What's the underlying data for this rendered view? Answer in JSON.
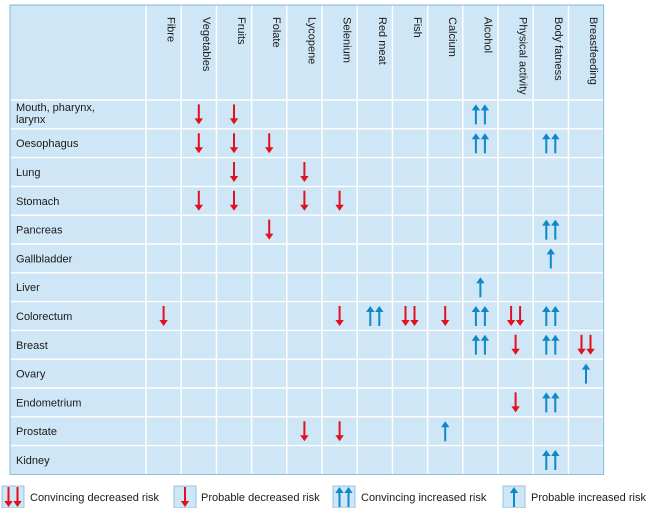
{
  "chart_data": {
    "type": "table",
    "title": "",
    "columns": [
      "Fibre",
      "Vegetables",
      "Fruits",
      "Folate",
      "Lycopene",
      "Selenium",
      "Red meat",
      "Fish",
      "Calcium",
      "Alcohol",
      "Physical activity",
      "Body fatness",
      "Breastfeeding"
    ],
    "rows": [
      {
        "label": [
          "Mouth, pharynx,",
          "larynx"
        ],
        "cells": {
          "Vegetables": "PD",
          "Fruits": "PD",
          "Alcohol": "CI"
        }
      },
      {
        "label": [
          "Oesophagus"
        ],
        "cells": {
          "Vegetables": "PD",
          "Fruits": "PD",
          "Folate": "PD",
          "Alcohol": "CI",
          "Body fatness": "CI"
        }
      },
      {
        "label": [
          "Lung"
        ],
        "cells": {
          "Fruits": "PD",
          "Lycopene": "PD"
        }
      },
      {
        "label": [
          "Stomach"
        ],
        "cells": {
          "Vegetables": "PD",
          "Fruits": "PD",
          "Lycopene": "PD",
          "Selenium": "PD"
        }
      },
      {
        "label": [
          "Pancreas"
        ],
        "cells": {
          "Folate": "PD",
          "Body fatness": "CI"
        }
      },
      {
        "label": [
          "Gallbladder"
        ],
        "cells": {
          "Body fatness": "PI"
        }
      },
      {
        "label": [
          "Liver"
        ],
        "cells": {
          "Alcohol": "PI"
        }
      },
      {
        "label": [
          "Colorectum"
        ],
        "cells": {
          "Fibre": "PD",
          "Selenium": "PD",
          "Red meat": "CI",
          "Fish": "CD",
          "Calcium": "PD",
          "Alcohol": "CI",
          "Physical activity": "CD",
          "Body fatness": "CI"
        }
      },
      {
        "label": [
          "Breast"
        ],
        "cells": {
          "Alcohol": "CI",
          "Physical activity": "PD",
          "Body fatness": "CI",
          "Breastfeeding": "CD"
        }
      },
      {
        "label": [
          "Ovary"
        ],
        "cells": {
          "Breastfeeding": "PI"
        }
      },
      {
        "label": [
          "Endometrium"
        ],
        "cells": {
          "Physical activity": "PD",
          "Body fatness": "CI"
        }
      },
      {
        "label": [
          "Prostate"
        ],
        "cells": {
          "Lycopene": "PD",
          "Selenium": "PD",
          "Calcium": "PI"
        }
      },
      {
        "label": [
          "Kidney"
        ],
        "cells": {
          "Body fatness": "CI"
        }
      }
    ],
    "legend": [
      {
        "code": "CD",
        "label": "Convincing decreased risk"
      },
      {
        "code": "PD",
        "label": "Probable decreased risk"
      },
      {
        "code": "CI",
        "label": "Convincing increased risk"
      },
      {
        "code": "PI",
        "label": "Probable increased risk"
      }
    ]
  },
  "colors": {
    "cell_fill": "#cfe6f6",
    "grid_line": "#ffffff",
    "border": "#7fb8dc",
    "decrease": "#e3101e",
    "increase": "#0e88c8"
  }
}
